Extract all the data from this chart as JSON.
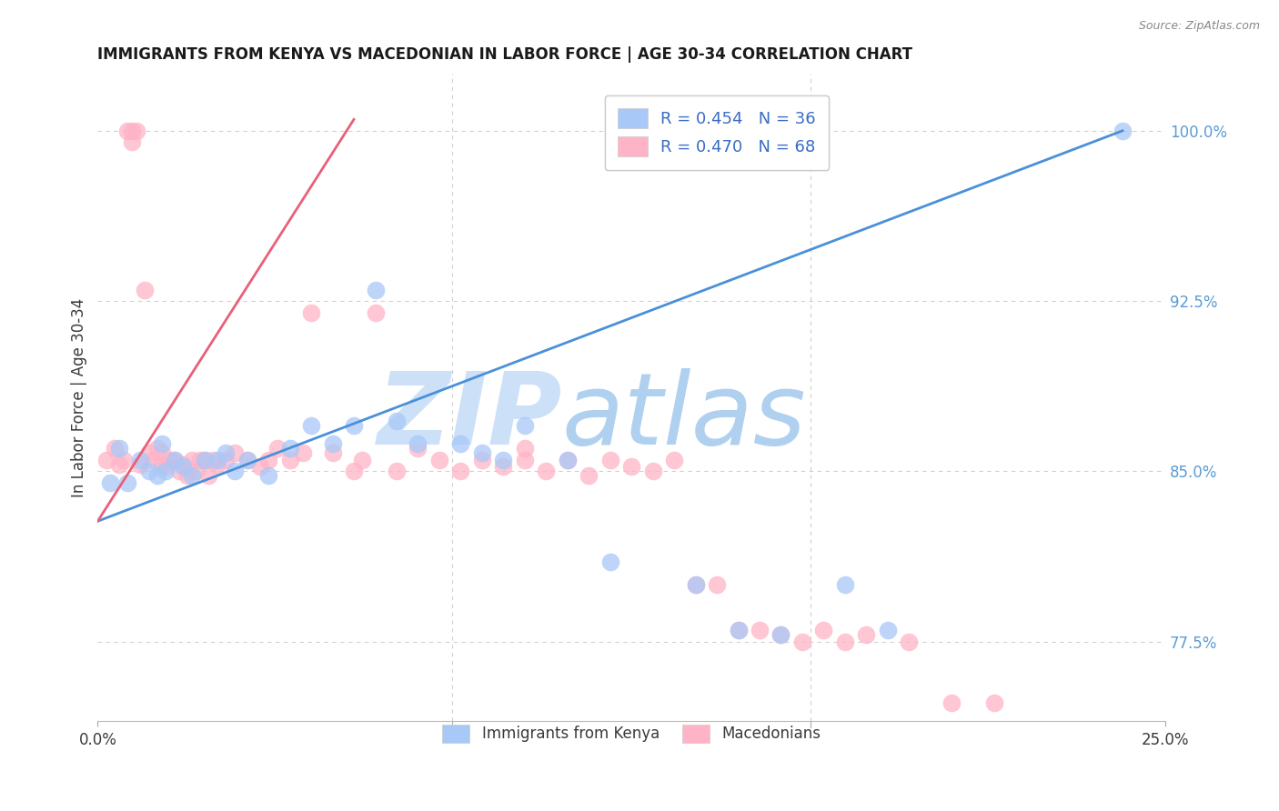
{
  "title": "IMMIGRANTS FROM KENYA VS MACEDONIAN IN LABOR FORCE | AGE 30-34 CORRELATION CHART",
  "source": "Source: ZipAtlas.com",
  "ylabel_label": "In Labor Force | Age 30-34",
  "legend_entries": [
    {
      "label": "R = 0.454   N = 36",
      "color": "#a8c8f8"
    },
    {
      "label": "R = 0.470   N = 68",
      "color": "#ffb3c6"
    }
  ],
  "bottom_legend": [
    {
      "label": "Immigrants from Kenya",
      "color": "#a8c8f8"
    },
    {
      "label": "Macedonians",
      "color": "#ffb3c6"
    }
  ],
  "kenya_color": "#a8c8f8",
  "macedonian_color": "#ffb3c6",
  "kenya_line_color": "#4a90d9",
  "macedonian_line_color": "#e8607a",
  "watermark_zip_color": "#cce0f8",
  "watermark_atlas_color": "#b0d0f0",
  "xmin": 0.0,
  "xmax": 0.25,
  "ymin": 0.74,
  "ymax": 1.025,
  "yticks": [
    0.775,
    0.85,
    0.925,
    1.0
  ],
  "ytick_labels": [
    "77.5%",
    "85.0%",
    "92.5%",
    "100.0%"
  ],
  "xticks": [
    0.0,
    0.25
  ],
  "xtick_labels": [
    "0.0%",
    "25.0%"
  ],
  "kenya_scatter_x": [
    0.003,
    0.005,
    0.007,
    0.01,
    0.012,
    0.014,
    0.015,
    0.016,
    0.018,
    0.02,
    0.022,
    0.025,
    0.028,
    0.03,
    0.032,
    0.035,
    0.04,
    0.045,
    0.05,
    0.055,
    0.06,
    0.065,
    0.07,
    0.075,
    0.085,
    0.09,
    0.095,
    0.1,
    0.11,
    0.12,
    0.14,
    0.15,
    0.16,
    0.175,
    0.185,
    0.24
  ],
  "kenya_scatter_y": [
    0.845,
    0.86,
    0.845,
    0.855,
    0.85,
    0.848,
    0.862,
    0.85,
    0.855,
    0.852,
    0.848,
    0.855,
    0.855,
    0.858,
    0.85,
    0.855,
    0.848,
    0.86,
    0.87,
    0.862,
    0.87,
    0.93,
    0.872,
    0.862,
    0.862,
    0.858,
    0.855,
    0.87,
    0.855,
    0.81,
    0.8,
    0.78,
    0.778,
    0.8,
    0.78,
    1.0
  ],
  "macedonian_scatter_x": [
    0.002,
    0.004,
    0.005,
    0.006,
    0.007,
    0.008,
    0.008,
    0.009,
    0.01,
    0.011,
    0.012,
    0.013,
    0.014,
    0.015,
    0.015,
    0.016,
    0.017,
    0.018,
    0.019,
    0.02,
    0.021,
    0.022,
    0.023,
    0.024,
    0.025,
    0.026,
    0.027,
    0.028,
    0.03,
    0.032,
    0.035,
    0.038,
    0.04,
    0.042,
    0.045,
    0.048,
    0.05,
    0.055,
    0.06,
    0.062,
    0.065,
    0.07,
    0.075,
    0.08,
    0.085,
    0.09,
    0.095,
    0.1,
    0.1,
    0.105,
    0.11,
    0.115,
    0.12,
    0.125,
    0.13,
    0.135,
    0.14,
    0.145,
    0.15,
    0.155,
    0.16,
    0.165,
    0.17,
    0.175,
    0.18,
    0.19,
    0.2,
    0.21
  ],
  "macedonian_scatter_y": [
    0.855,
    0.86,
    0.853,
    0.855,
    1.0,
    1.0,
    0.995,
    1.0,
    0.853,
    0.93,
    0.858,
    0.855,
    0.86,
    0.853,
    0.858,
    0.852,
    0.855,
    0.855,
    0.85,
    0.853,
    0.848,
    0.855,
    0.85,
    0.855,
    0.855,
    0.848,
    0.855,
    0.853,
    0.855,
    0.858,
    0.855,
    0.852,
    0.855,
    0.86,
    0.855,
    0.858,
    0.92,
    0.858,
    0.85,
    0.855,
    0.92,
    0.85,
    0.86,
    0.855,
    0.85,
    0.855,
    0.852,
    0.86,
    0.855,
    0.85,
    0.855,
    0.848,
    0.855,
    0.852,
    0.85,
    0.855,
    0.8,
    0.8,
    0.78,
    0.78,
    0.778,
    0.775,
    0.78,
    0.775,
    0.778,
    0.775,
    0.748,
    0.748
  ],
  "kenya_line_x": [
    0.0,
    0.24
  ],
  "kenya_line_y": [
    0.828,
    1.0
  ],
  "macedonian_line_x": [
    0.0,
    0.06
  ],
  "macedonian_line_y": [
    0.828,
    1.005
  ]
}
